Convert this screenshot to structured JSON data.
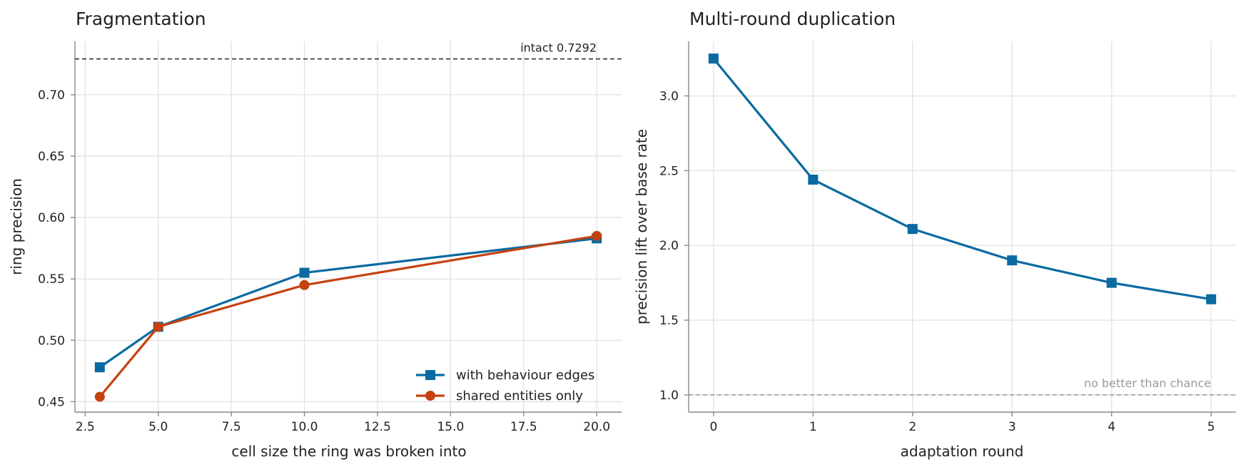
{
  "chart_data": [
    {
      "type": "line",
      "title": "Fragmentation",
      "xlabel": "cell size the ring was broken into",
      "ylabel": "ring precision",
      "xlim": [
        2.15,
        20.85
      ],
      "ylim": [
        0.4415,
        0.7435
      ],
      "x_ticks": [
        2.5,
        5.0,
        7.5,
        10.0,
        12.5,
        15.0,
        17.5,
        20.0
      ],
      "x_tick_labels": [
        "2.5",
        "5.0",
        "7.5",
        "10.0",
        "12.5",
        "15.0",
        "17.5",
        "20.0"
      ],
      "y_ticks": [
        0.45,
        0.5,
        0.55,
        0.6,
        0.65,
        0.7
      ],
      "y_tick_labels": [
        "0.45",
        "0.50",
        "0.55",
        "0.60",
        "0.65",
        "0.70"
      ],
      "grid": true,
      "legend_position": "bottom-right",
      "series": [
        {
          "name": "with behaviour edges",
          "marker": "square",
          "color": "#0a6aa1",
          "x": [
            3,
            5,
            10,
            20
          ],
          "y": [
            0.478,
            0.511,
            0.555,
            0.583
          ]
        },
        {
          "name": "shared entities only",
          "marker": "circle",
          "color": "#c4420f",
          "x": [
            3,
            5,
            10,
            20
          ],
          "y": [
            0.454,
            0.511,
            0.545,
            0.585
          ]
        }
      ],
      "reference_line": {
        "y": 0.7292,
        "label": "intact  0.7292",
        "style": "dashed",
        "color": "#222222"
      }
    },
    {
      "type": "line",
      "title": "Multi-round duplication",
      "xlabel": "adaptation round",
      "ylabel": "precision lift over base rate",
      "xlim": [
        -0.25,
        5.25
      ],
      "ylim": [
        0.885,
        3.365
      ],
      "x_ticks": [
        0,
        1,
        2,
        3,
        4,
        5
      ],
      "x_tick_labels": [
        "0",
        "1",
        "2",
        "3",
        "4",
        "5"
      ],
      "y_ticks": [
        1.0,
        1.5,
        2.0,
        2.5,
        3.0
      ],
      "y_tick_labels": [
        "1.0",
        "1.5",
        "2.0",
        "2.5",
        "3.0"
      ],
      "grid": true,
      "series": [
        {
          "marker": "square",
          "color": "#0a6aa1",
          "x": [
            0,
            1,
            2,
            3,
            4,
            5
          ],
          "y": [
            3.25,
            2.44,
            2.11,
            1.9,
            1.75,
            1.64
          ]
        }
      ],
      "reference_line": {
        "y": 1.0,
        "label": "no better than chance",
        "style": "dashed",
        "color": "#999999"
      }
    }
  ]
}
